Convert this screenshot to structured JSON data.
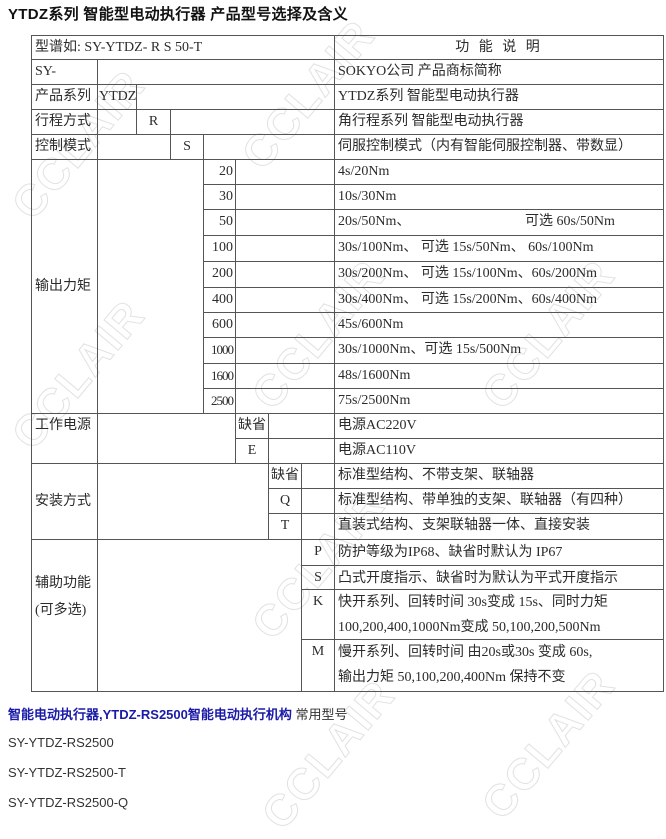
{
  "title": "YTDZ系列  智能型电动执行器  产品型号选择及含义",
  "watermark": "CCLAIR",
  "table": {
    "header": {
      "example": "型谱如:  SY-YTDZ- R S 50-T",
      "function": "功 能 说 明"
    },
    "brand": {
      "code": "SY-",
      "desc": "SOKYO公司 产品商标简称"
    },
    "series": {
      "label": "产品系列",
      "code": "YTDZ",
      "desc": "YTDZ系列  智能型电动执行器"
    },
    "stroke": {
      "label": "行程方式",
      "code": "R",
      "desc": "角行程系列  智能型电动执行器"
    },
    "control": {
      "label": "控制模式",
      "code": "S",
      "desc": "伺服控制模式（内有智能伺服控制器、带数显）"
    },
    "torque": {
      "label": "输出力矩",
      "rows": [
        {
          "code": "20",
          "desc": "4s/20Nm"
        },
        {
          "code": "30",
          "desc": "10s/30Nm"
        },
        {
          "code": "50",
          "desc": "20s/50Nm、",
          "desc2": "可选 60s/50Nm"
        },
        {
          "code": "100",
          "desc": "30s/100Nm、 可选 15s/50Nm、  60s/100Nm"
        },
        {
          "code": "200",
          "desc": "30s/200Nm、 可选 15s/100Nm、60s/200Nm"
        },
        {
          "code": "400",
          "desc": "30s/400Nm、 可选 15s/200Nm、60s/400Nm"
        },
        {
          "code": "600",
          "desc": "45s/600Nm"
        },
        {
          "code": "1000",
          "desc": "30s/1000Nm、可选 15s/500Nm"
        },
        {
          "code": "1600",
          "desc": "48s/1600Nm"
        },
        {
          "code": "2500",
          "desc": "75s/2500Nm"
        }
      ]
    },
    "power": {
      "label": "工作电源",
      "rows": [
        {
          "code": "缺省",
          "desc": "电源AC220V"
        },
        {
          "code": "E",
          "desc": "电源AC110V"
        }
      ]
    },
    "mount": {
      "label": "安装方式",
      "rows": [
        {
          "code": "缺省",
          "desc": "标准型结构、不带支架、联轴器"
        },
        {
          "code": "Q",
          "desc": "标准型结构、带单独的支架、联轴器（有四种）"
        },
        {
          "code": "T",
          "desc": "直装式结构、支架联轴器一体、直接安装"
        }
      ]
    },
    "aux": {
      "label": "辅助功能",
      "label2": "(可多选)",
      "rows": [
        {
          "code": "P",
          "desc": "防护等级为IP68、缺省时默认为 IP67"
        },
        {
          "code": "S",
          "desc": "凸式开度指示、缺省时为默认为平式开度指示"
        },
        {
          "code": "K",
          "desc": "快开系列、回转时间 30s变成 15s、同时力矩",
          "desc2": "100,200,400,1000Nm变成 50,100,200,500Nm"
        },
        {
          "code": "M",
          "desc": "慢开系列、回转时间 由20s或30s 变成  60s,",
          "desc2": "输出力矩 50,100,200,400Nm 保持不变"
        }
      ]
    }
  },
  "footer": {
    "heading_link": "智能电动执行器,YTDZ-RS2500智能电动执行机构",
    "heading_suffix": " 常用型号",
    "models": [
      "SY-YTDZ-RS2500",
      "SY-YTDZ-RS2500-T",
      "SY-YTDZ-RS2500-Q"
    ]
  },
  "colors": {
    "link": "#1a1aa8",
    "border": "#555555",
    "text": "#2b2b2b"
  }
}
